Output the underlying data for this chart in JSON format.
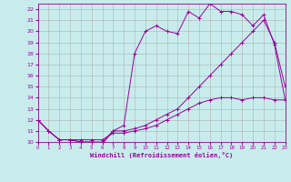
{
  "xlabel": "Windchill (Refroidissement éolien,°C)",
  "xlim": [
    0,
    23
  ],
  "ylim": [
    10,
    22.5
  ],
  "background_color": "#c8ecec",
  "line_color": "#990099",
  "grid_color": "#b0b0b0",
  "xticks": [
    0,
    1,
    2,
    3,
    4,
    5,
    6,
    7,
    8,
    9,
    10,
    11,
    12,
    13,
    14,
    15,
    16,
    17,
    18,
    19,
    20,
    21,
    22,
    23
  ],
  "yticks": [
    10,
    11,
    12,
    13,
    14,
    15,
    16,
    17,
    18,
    19,
    20,
    21,
    22
  ],
  "line1_x": [
    0,
    1,
    2,
    3,
    4,
    5,
    6,
    7,
    8,
    9,
    10,
    11,
    12,
    13,
    14,
    15,
    16,
    17,
    18,
    19,
    20,
    21,
    22,
    23
  ],
  "line1_y": [
    12,
    11,
    10.2,
    10.2,
    10,
    10,
    10,
    11,
    11,
    11.2,
    11.5,
    12,
    12.5,
    13,
    14,
    15,
    16,
    17,
    18,
    19,
    20,
    21,
    19,
    15
  ],
  "line2_x": [
    0,
    1,
    2,
    3,
    4,
    5,
    6,
    7,
    8,
    9,
    10,
    11,
    12,
    13,
    14,
    15,
    16,
    17,
    18,
    19,
    20,
    21,
    22,
    23
  ],
  "line2_y": [
    12,
    11,
    10.2,
    10.2,
    10,
    10,
    9.8,
    11,
    11.5,
    18,
    20,
    20.5,
    20,
    19.8,
    21.8,
    21.2,
    22.5,
    21.8,
    21.8,
    21.5,
    20.5,
    21.5,
    18.8,
    13.8
  ],
  "line3_x": [
    0,
    1,
    2,
    3,
    4,
    5,
    6,
    7,
    8,
    9,
    10,
    11,
    12,
    13,
    14,
    15,
    16,
    17,
    18,
    19,
    20,
    21,
    22,
    23
  ],
  "line3_y": [
    12,
    11,
    10.2,
    10.2,
    10.2,
    10.2,
    10.2,
    10.8,
    10.8,
    11,
    11.2,
    11.5,
    12,
    12.5,
    13,
    13.5,
    13.8,
    14,
    14,
    13.8,
    14,
    14,
    13.8,
    13.8
  ]
}
